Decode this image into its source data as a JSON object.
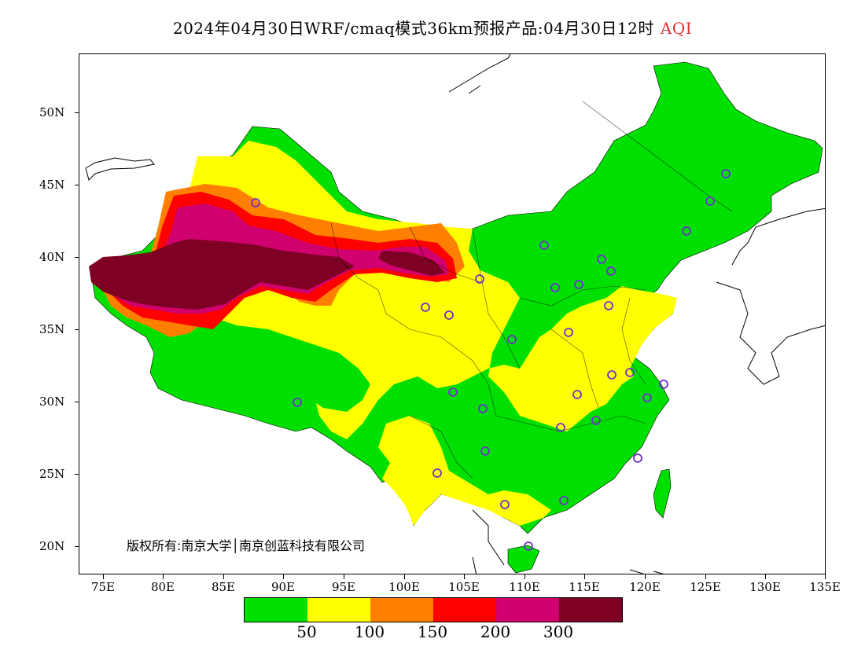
{
  "title": {
    "main": "2024年04月30日WRF/cmaq模式36km预报产品:04月30日12时",
    "variable": "AQI"
  },
  "copyright": "版权所有:南京大学│南京创蓝科技有限公司",
  "y_axis": [
    "50N",
    "45N",
    "40N",
    "35N",
    "30N",
    "25N",
    "20N"
  ],
  "x_axis": [
    "75E",
    "80E",
    "85E",
    "90E",
    "95E",
    "100E",
    "105E",
    "110E",
    "115E",
    "120E",
    "125E",
    "130E",
    "135E"
  ],
  "legend": {
    "colors": [
      "#00e000",
      "#ffff00",
      "#ff8000",
      "#ff0000",
      "#d0006e",
      "#7e0023"
    ],
    "labels": [
      "50",
      "100",
      "150",
      "200",
      "300"
    ]
  },
  "colors": {
    "good": "#00e000",
    "moderate": "#ffff00",
    "usg": "#ff8000",
    "unhealthy": "#ff0000",
    "very_unhealthy": "#d0006e",
    "hazardous": "#7e0023",
    "city_marker": "#7030d0"
  }
}
